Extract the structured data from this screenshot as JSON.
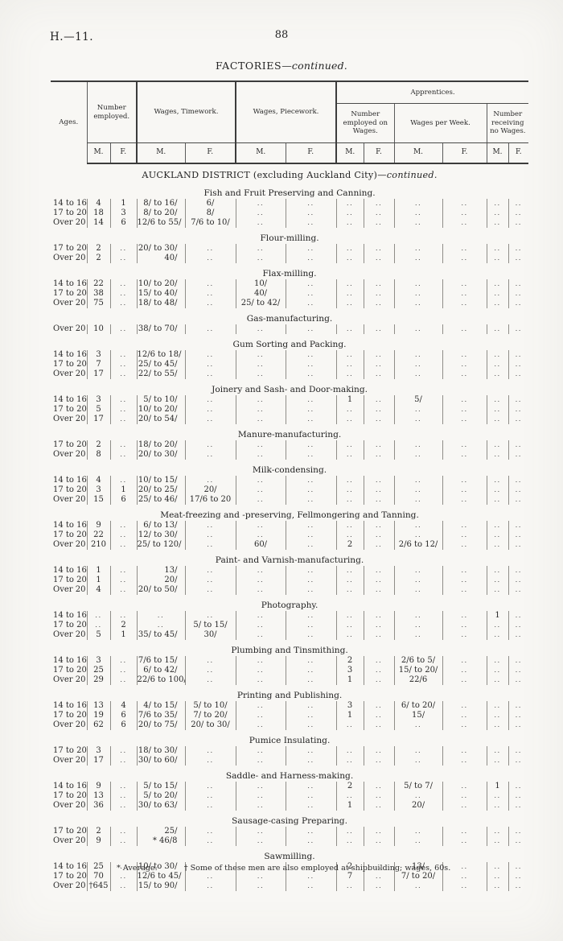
{
  "colors": {
    "paper": "#f8f7f4",
    "ink": "#242424",
    "rule": "#3c3c3c"
  },
  "page": {
    "doc_ref": "H.—11.",
    "page_number": "88",
    "title": "FACTORIES",
    "title_continued": "—continued.",
    "footnote_1": "* Average.",
    "footnote_2": "† Some of these men are also employed at shipbuilding; wages, 60s."
  },
  "table": {
    "header": {
      "ages": "Ages.",
      "number_employed": "Number employed.",
      "wages_timework": "Wages, Timework.",
      "wages_piecework": "Wages, Piecework.",
      "apprentices": "Apprentices.",
      "appr_number_on_wages": "Number employed on Wages.",
      "wages_per_week": "Wages per Week.",
      "number_no_wages": "Number receiving no Wages.",
      "mf": [
        "M.",
        "F."
      ]
    },
    "district_heading": "AUCKLAND DISTRICT (excluding Auckland City)",
    "district_continued": "—continued.",
    "sections": [
      {
        "heading": "Fish and Fruit Preserving and Canning.",
        "rows": [
          [
            "14 to 16",
            "4",
            "1",
            "8/ to 16/",
            "6/",
            "..",
            "..",
            "..",
            "..",
            "..",
            "..",
            "..",
            ".."
          ],
          [
            "17 to 20",
            "18",
            "3",
            "8/ to 20/",
            "8/",
            "..",
            "..",
            "..",
            "..",
            "..",
            "..",
            "..",
            ".."
          ],
          [
            "Over 20",
            "14",
            "6",
            "12/6 to 55/",
            "7/6 to 10/",
            "..",
            "..",
            "..",
            "..",
            "..",
            "..",
            "..",
            ".."
          ]
        ]
      },
      {
        "heading": "Flour-milling.",
        "rows": [
          [
            "17 to 20",
            "2",
            "..",
            "20/ to 30/",
            "..",
            "..",
            "..",
            "..",
            "..",
            "..",
            "..",
            "..",
            ".."
          ],
          [
            "Over 20",
            "2",
            "..",
            "40/",
            "..",
            "..",
            "..",
            "..",
            "..",
            "..",
            "..",
            "..",
            ".."
          ]
        ]
      },
      {
        "heading": "Flax-milling.",
        "rows": [
          [
            "14 to 16",
            "22",
            "..",
            "10/ to 20/",
            "..",
            "10/",
            "..",
            "..",
            "..",
            "..",
            "..",
            "..",
            ".."
          ],
          [
            "17 to 20",
            "38",
            "..",
            "15/ to 40/",
            "..",
            "40/",
            "..",
            "..",
            "..",
            "..",
            "..",
            "..",
            ".."
          ],
          [
            "Over 20",
            "75",
            "..",
            "18/ to 48/",
            "..",
            "25/ to 42/",
            "..",
            "..",
            "..",
            "..",
            "..",
            "..",
            ".."
          ]
        ]
      },
      {
        "heading": "Gas-manufacturing.",
        "rows": [
          [
            "Over 20",
            "10",
            "..",
            "38/ to 70/",
            "..",
            "..",
            "..",
            "..",
            "..",
            "..",
            "..",
            "..",
            ".."
          ]
        ]
      },
      {
        "heading": "Gum Sorting and Packing.",
        "rows": [
          [
            "14 to 16",
            "3",
            "..",
            "12/6 to 18/",
            "..",
            "..",
            "..",
            "..",
            "..",
            "..",
            "..",
            "..",
            ".."
          ],
          [
            "17 to 20",
            "7",
            "..",
            "25/ to 45/",
            "..",
            "..",
            "..",
            "..",
            "..",
            "..",
            "..",
            "..",
            ".."
          ],
          [
            "Over 20",
            "17",
            "..",
            "22/ to 55/",
            "..",
            "..",
            "..",
            "..",
            "..",
            "..",
            "..",
            "..",
            ".."
          ]
        ]
      },
      {
        "heading": "Joinery and Sash- and Door-making.",
        "rows": [
          [
            "14 to 16",
            "3",
            "..",
            "5/ to 10/",
            "..",
            "..",
            "..",
            "1",
            "..",
            "5/",
            "..",
            "..",
            ".."
          ],
          [
            "17 to 20",
            "5",
            "..",
            "10/ to 20/",
            "..",
            "..",
            "..",
            "..",
            "..",
            "..",
            "..",
            "..",
            ".."
          ],
          [
            "Over 20",
            "17",
            "..",
            "20/ to 54/",
            "..",
            "..",
            "..",
            "..",
            "..",
            "..",
            "..",
            "..",
            ".."
          ]
        ]
      },
      {
        "heading": "Manure-manufacturing.",
        "rows": [
          [
            "17 to 20",
            "2",
            "..",
            "18/ to 20/",
            "..",
            "..",
            "..",
            "..",
            "..",
            "..",
            "..",
            "..",
            ".."
          ],
          [
            "Over 20",
            "8",
            "..",
            "20/ to 30/",
            "..",
            "..",
            "..",
            "..",
            "..",
            "..",
            "..",
            "..",
            ".."
          ]
        ]
      },
      {
        "heading": "Milk-condensing.",
        "rows": [
          [
            "14 to 16",
            "4",
            "..",
            "10/ to 15/",
            "..",
            "..",
            "..",
            "..",
            "..",
            "..",
            "..",
            "..",
            ".."
          ],
          [
            "17 to 20",
            "3",
            "1",
            "20/ to 25/",
            "20/",
            "..",
            "..",
            "..",
            "..",
            "..",
            "..",
            "..",
            ".."
          ],
          [
            "Over 20",
            "15",
            "6",
            "25/ to 46/",
            "17/6 to 20",
            "..",
            "..",
            "..",
            "..",
            "..",
            "..",
            "..",
            ".."
          ]
        ]
      },
      {
        "heading": "Meat-freezing and -preserving, Fellmongering and Tanning.",
        "rows": [
          [
            "14 to 16",
            "9",
            "..",
            "6/ to 13/",
            "..",
            "..",
            "..",
            "..",
            "..",
            "..",
            "..",
            "..",
            ".."
          ],
          [
            "17 to 20",
            "22",
            "..",
            "12/ to 30/",
            "..",
            "..",
            "..",
            "..",
            "..",
            "..",
            "..",
            "..",
            ".."
          ],
          [
            "Over 20",
            "210",
            "..",
            "25/ to 120/",
            "..",
            "60/",
            "..",
            "2",
            "..",
            "2/6 to 12/",
            "..",
            "..",
            ".."
          ]
        ]
      },
      {
        "heading": "Paint- and Varnish-manufacturing.",
        "rows": [
          [
            "14 to 16",
            "1",
            "..",
            "13/",
            "..",
            "..",
            "..",
            "..",
            "..",
            "..",
            "..",
            "..",
            ".."
          ],
          [
            "17 to 20",
            "1",
            "..",
            "20/",
            "..",
            "..",
            "..",
            "..",
            "..",
            "..",
            "..",
            "..",
            ".."
          ],
          [
            "Over 20",
            "4",
            "..",
            "20/ to 50/",
            "..",
            "..",
            "..",
            "..",
            "..",
            "..",
            "..",
            "..",
            ".."
          ]
        ]
      },
      {
        "heading": "Photography.",
        "rows": [
          [
            "14 to 16",
            "..",
            "..",
            "..",
            "..",
            "..",
            "..",
            "..",
            "..",
            "..",
            "..",
            "1",
            ".."
          ],
          [
            "17 to 20",
            "..",
            "2",
            "..",
            "5/ to 15/",
            "..",
            "..",
            "..",
            "..",
            "..",
            "..",
            "..",
            ".."
          ],
          [
            "Over 20",
            "5",
            "1",
            "35/ to 45/",
            "30/",
            "..",
            "..",
            "..",
            "..",
            "..",
            "..",
            "..",
            ".."
          ]
        ]
      },
      {
        "heading": "Plumbing and Tinsmithing.",
        "rows": [
          [
            "14 to 16",
            "3",
            "..",
            "7/6 to 15/",
            "..",
            "..",
            "..",
            "2",
            "..",
            "2/6 to 5/",
            "..",
            "..",
            ".."
          ],
          [
            "17 to 20",
            "25",
            "..",
            "6/ to 42/",
            "..",
            "..",
            "..",
            "3",
            "..",
            "15/ to 20/",
            "..",
            "..",
            ".."
          ],
          [
            "Over 20",
            "29",
            "..",
            "22/6 to 100/",
            "..",
            "..",
            "..",
            "1",
            "..",
            "22/6",
            "..",
            "..",
            ".."
          ]
        ]
      },
      {
        "heading": "Printing and Publishing.",
        "rows": [
          [
            "14 to 16",
            "13",
            "4",
            "4/ to 15/",
            "5/ to 10/",
            "..",
            "..",
            "3",
            "..",
            "6/ to 20/",
            "..",
            "..",
            ".."
          ],
          [
            "17 to 20",
            "19",
            "6",
            "7/6 to 35/",
            "7/ to 20/",
            "..",
            "..",
            "1",
            "..",
            "15/",
            "..",
            "..",
            ".."
          ],
          [
            "Over 20",
            "62",
            "6",
            "20/ to 75/",
            "20/ to 30/",
            "..",
            "..",
            "..",
            "..",
            "..",
            "..",
            "..",
            ".."
          ]
        ]
      },
      {
        "heading": "Pumice Insulating.",
        "rows": [
          [
            "17 to 20",
            "3",
            "..",
            "18/ to 30/",
            "..",
            "..",
            "..",
            "..",
            "..",
            "..",
            "..",
            "..",
            ".."
          ],
          [
            "Over 20",
            "17",
            "..",
            "30/ to 60/",
            "..",
            "..",
            "..",
            "..",
            "..",
            "..",
            "..",
            "..",
            ".."
          ]
        ]
      },
      {
        "heading": "Saddle- and Harness-making.",
        "rows": [
          [
            "14 to 16",
            "9",
            "..",
            "5/ to 15/",
            "..",
            "..",
            "..",
            "2",
            "..",
            "5/ to 7/",
            "..",
            "1",
            ".."
          ],
          [
            "17 to 20",
            "13",
            "..",
            "5/ to 20/",
            "..",
            "..",
            "..",
            "..",
            "..",
            "..",
            "..",
            "..",
            ".."
          ],
          [
            "Over 20",
            "36",
            "..",
            "30/ to 63/",
            "..",
            "..",
            "..",
            "1",
            "..",
            "20/",
            "..",
            "..",
            ".."
          ]
        ]
      },
      {
        "heading": "Sausage-casing Preparing.",
        "rows": [
          [
            "17 to 20",
            "2",
            "..",
            "25/",
            "..",
            "..",
            "..",
            "..",
            "..",
            "..",
            "..",
            "..",
            ".."
          ],
          [
            "Over 20",
            "9",
            "..",
            "* 46/8",
            "..",
            "..",
            "..",
            "..",
            "..",
            "..",
            "..",
            "..",
            ".."
          ]
        ]
      },
      {
        "heading": "Sawmilling.",
        "rows": [
          [
            "14 to 16",
            "25",
            "..",
            "10/ to 30/",
            "..",
            "..",
            "..",
            "2",
            "..",
            "13/",
            "..",
            "..",
            ".."
          ],
          [
            "17 to 20",
            "70",
            "..",
            "12/6 to 45/",
            "..",
            "..",
            "..",
            "7",
            "..",
            "7/ to 20/",
            "..",
            "..",
            ".."
          ],
          [
            "Over 20",
            "†645",
            "..",
            "15/ to 90/",
            "..",
            "..",
            "..",
            "..",
            "..",
            "..",
            "..",
            "..",
            ".."
          ]
        ]
      }
    ]
  }
}
